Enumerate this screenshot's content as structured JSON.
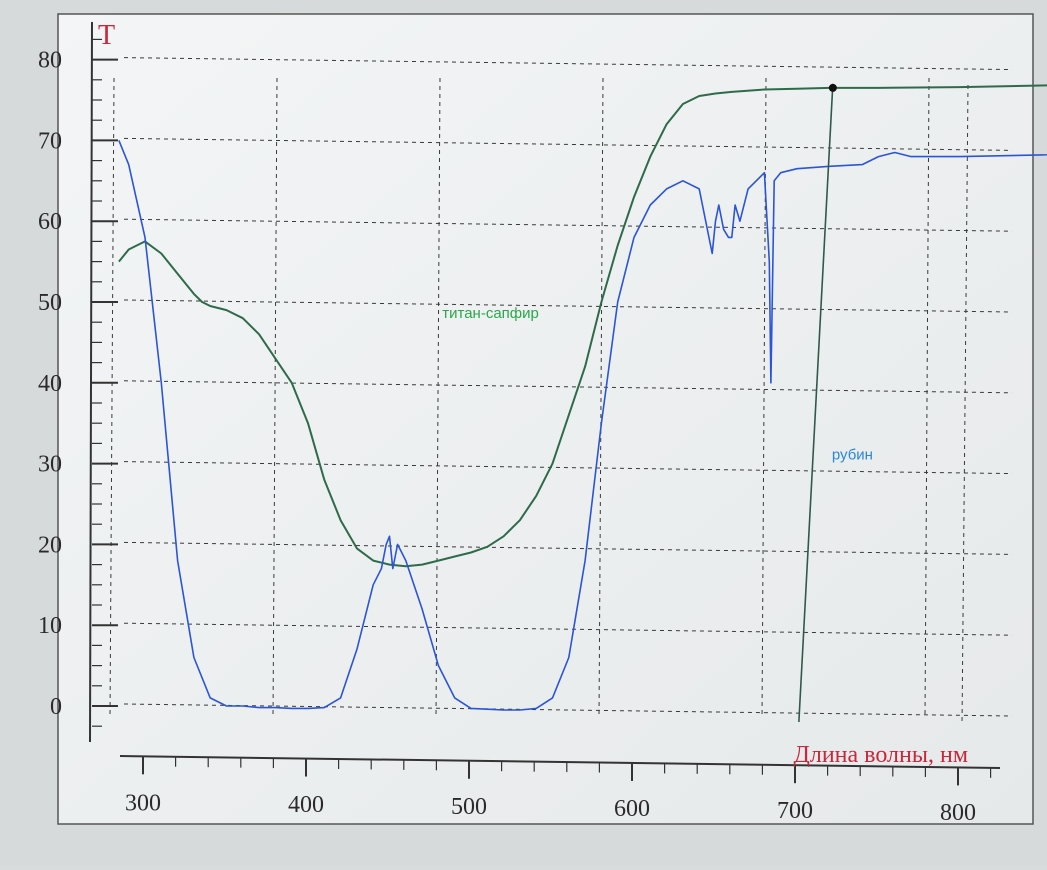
{
  "chart_data": {
    "type": "line",
    "title": "",
    "ylabel": "T",
    "xlabel": "Длина волны, нм",
    "xlim": [
      283,
      1010
    ],
    "ylim": [
      -4,
      85
    ],
    "x_ticks": [
      300,
      400,
      500,
      600,
      700,
      800
    ],
    "y_ticks": [
      0,
      10,
      20,
      30,
      40,
      50,
      60,
      70,
      80
    ],
    "grid": true,
    "cursor_x": 722,
    "colors": {
      "ti_sapphire": "#2e6b4a",
      "ruby": "#2b55d6",
      "ti_label": "#2aa84a",
      "ruby_label": "#2a88d6",
      "axis_title": "#c8283c",
      "cursor": "#2f5a4a"
    },
    "series": [
      {
        "name": "титан-сапфир",
        "x": [
          284,
          290,
          300,
          310,
          320,
          330,
          335,
          340,
          350,
          360,
          370,
          380,
          390,
          400,
          410,
          420,
          430,
          440,
          450,
          460,
          470,
          480,
          490,
          500,
          510,
          520,
          530,
          540,
          550,
          560,
          570,
          580,
          590,
          600,
          610,
          620,
          630,
          640,
          650,
          660,
          680,
          700,
          720,
          750,
          800,
          850,
          900,
          950,
          1000
        ],
        "y": [
          55,
          56.5,
          57.5,
          56,
          53.5,
          51,
          50,
          49.5,
          49,
          48,
          46,
          43,
          40,
          35,
          28,
          23,
          19.5,
          18,
          17.5,
          17.3,
          17.5,
          18,
          18.5,
          19,
          19.7,
          21,
          23,
          26,
          30,
          36,
          42,
          50,
          57,
          63,
          68,
          72,
          74.5,
          75.5,
          75.8,
          76,
          76.3,
          76.4,
          76.5,
          76.5,
          76.6,
          76.8,
          77,
          77.2,
          77.3
        ]
      },
      {
        "name": "рубин",
        "x": [
          284,
          290,
          300,
          310,
          320,
          330,
          340,
          350,
          360,
          370,
          380,
          390,
          400,
          410,
          420,
          430,
          440,
          445,
          448,
          450,
          452,
          455,
          460,
          470,
          480,
          490,
          500,
          510,
          520,
          530,
          540,
          550,
          560,
          570,
          580,
          590,
          600,
          610,
          620,
          630,
          640,
          648,
          650,
          652,
          655,
          658,
          660,
          662,
          665,
          670,
          675,
          680,
          683,
          684,
          686,
          690,
          700,
          720,
          740,
          750,
          760,
          770,
          800,
          850,
          900,
          950,
          1000
        ],
        "y": [
          70,
          67,
          58,
          40,
          18,
          6,
          1,
          0,
          0,
          -0.2,
          -0.2,
          -0.3,
          -0.3,
          -0.2,
          1,
          7,
          15,
          17,
          20,
          21,
          17,
          20,
          18,
          12,
          5,
          1,
          -0.3,
          -0.4,
          -0.5,
          -0.5,
          -0.3,
          1,
          6,
          18,
          35,
          50,
          58,
          62,
          64,
          65,
          64,
          56,
          60,
          62,
          59,
          58,
          58,
          62,
          60,
          64,
          65,
          66,
          55,
          40,
          65,
          66,
          66.5,
          66.8,
          67,
          68,
          68.5,
          68,
          68,
          68.2,
          68.5,
          68.8,
          69
        ]
      }
    ],
    "annotations": [
      {
        "text": "титан-сапфир",
        "x": 512,
        "y": 48
      },
      {
        "text": "рубин",
        "x": 734,
        "y": 30.5
      }
    ]
  }
}
